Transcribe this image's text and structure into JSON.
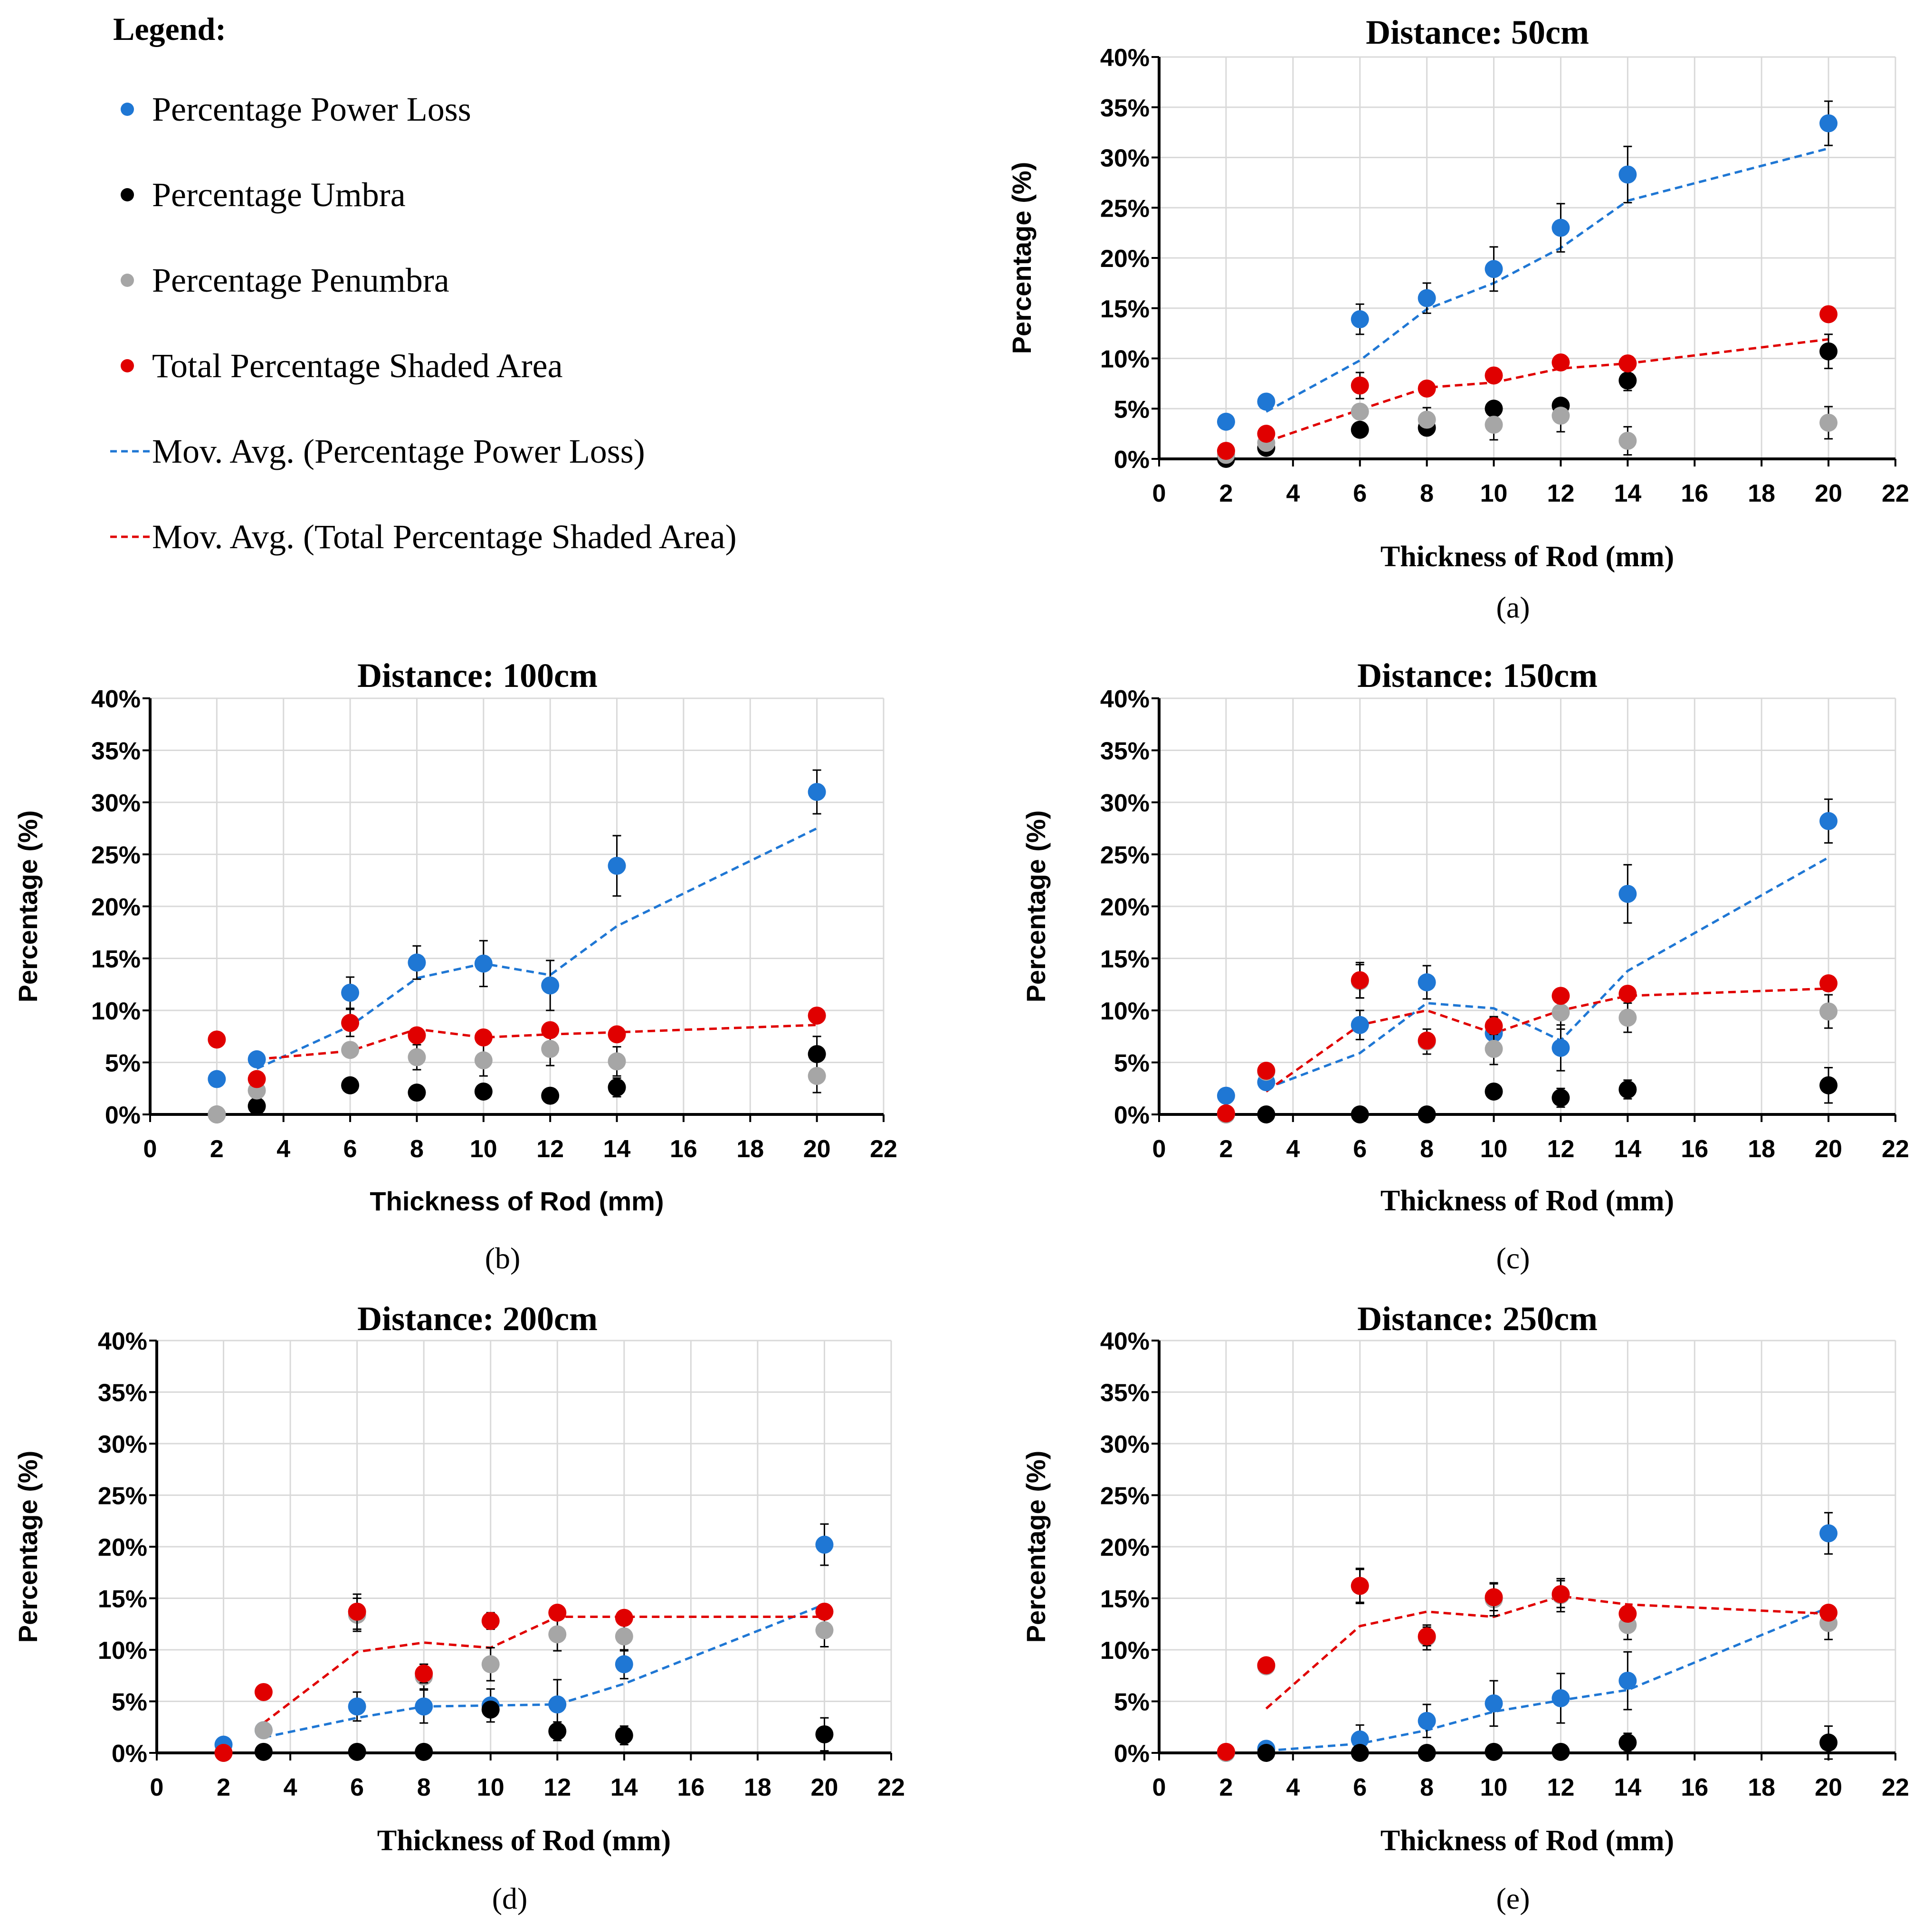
{
  "legend": {
    "title": "Legend:",
    "items": [
      {
        "label": "Percentage Power Loss",
        "kind": "marker",
        "color": "#1f77d4"
      },
      {
        "label": "Percentage Umbra",
        "kind": "marker",
        "color": "#000000"
      },
      {
        "label": "Percentage Penumbra",
        "kind": "marker",
        "color": "#a6a6a6"
      },
      {
        "label": "Total Percentage Shaded Area",
        "kind": "marker",
        "color": "#e00000"
      },
      {
        "label": "Mov. Avg. (Percentage Power Loss)",
        "kind": "dash",
        "color": "#1f77d4"
      },
      {
        "label": "Mov. Avg. (Total Percentage Shaded Area)",
        "kind": "dash",
        "color": "#e00000"
      }
    ]
  },
  "colors": {
    "power": "#1f77d4",
    "umbra": "#000000",
    "penumbra": "#a6a6a6",
    "shaded": "#e00000"
  },
  "chart_data": [
    {
      "id": "a",
      "type": "scatter",
      "title": "Distance: 50cm",
      "caption": "(a)",
      "xlabel": "Thickness of Rod (mm)",
      "ylabel": "Percentage (%)",
      "xlim": [
        0,
        22
      ],
      "ylim": [
        0,
        40
      ],
      "x_ticks": [
        "0",
        "2",
        "4",
        "6",
        "8",
        "10",
        "12",
        "14",
        "16",
        "18",
        "20",
        "22"
      ],
      "y_ticks": [
        "0%",
        "5%",
        "10%",
        "15%",
        "20%",
        "25%",
        "30%",
        "35%",
        "40%"
      ],
      "x": [
        2,
        3.2,
        6,
        8,
        10,
        12,
        14,
        20
      ],
      "series": [
        {
          "name": "Percentage Power Loss",
          "color": "#1f77d4",
          "values": [
            3.7,
            5.7,
            13.9,
            16.0,
            18.9,
            23.0,
            28.3,
            33.4
          ],
          "errors": [
            0,
            0,
            1.5,
            1.5,
            2.2,
            2.4,
            2.8,
            2.2
          ]
        },
        {
          "name": "Percentage Umbra",
          "color": "#000000",
          "values": [
            0.0,
            1.1,
            2.9,
            3.1,
            5.0,
            5.3,
            7.8,
            10.7
          ],
          "errors": [
            0,
            0,
            0,
            0,
            0,
            0,
            1.0,
            1.7
          ]
        },
        {
          "name": "Percentage Penumbra",
          "color": "#a6a6a6",
          "values": [
            0.4,
            1.6,
            4.7,
            3.9,
            3.4,
            4.3,
            1.8,
            3.6
          ],
          "errors": [
            0,
            0,
            0,
            1.2,
            1.5,
            1.6,
            1.4,
            1.6
          ]
        },
        {
          "name": "Total Percentage Shaded Area",
          "color": "#e00000",
          "values": [
            0.8,
            2.5,
            7.3,
            7.0,
            8.3,
            9.6,
            9.5,
            14.4
          ],
          "errors": [
            0,
            0,
            1.3,
            0,
            0.7,
            0.7,
            0,
            0
          ]
        }
      ],
      "moving_averages": [
        {
          "name": "Mov. Avg. (Percentage Power Loss)",
          "color": "#1f77d4",
          "x": [
            3.2,
            6,
            8,
            10,
            12,
            14,
            20
          ],
          "values": [
            4.7,
            9.8,
            14.9,
            17.5,
            21.0,
            25.7,
            30.9
          ]
        },
        {
          "name": "Mov. Avg. (Total Percentage Shaded Area)",
          "color": "#e00000",
          "x": [
            3.2,
            6,
            8,
            10,
            12,
            14,
            20
          ],
          "values": [
            1.7,
            4.9,
            7.1,
            7.6,
            9.0,
            9.5,
            11.9
          ]
        }
      ]
    },
    {
      "id": "b",
      "type": "scatter",
      "title": "Distance: 100cm",
      "caption": "(b)",
      "xlabel": "Thickness of Rod (mm)",
      "ylabel": "Percentage (%)",
      "xlim": [
        0,
        22
      ],
      "ylim": [
        0,
        40
      ],
      "x_ticks": [
        "0",
        "2",
        "4",
        "6",
        "8",
        "10",
        "12",
        "14",
        "16",
        "18",
        "20",
        "22"
      ],
      "y_ticks": [
        "0%",
        "5%",
        "10%",
        "15%",
        "20%",
        "25%",
        "30%",
        "35%",
        "40%"
      ],
      "x": [
        2,
        3.2,
        6,
        8,
        10,
        12,
        14,
        20
      ],
      "series": [
        {
          "name": "Percentage Power Loss",
          "color": "#1f77d4",
          "values": [
            3.4,
            5.3,
            11.7,
            14.6,
            14.5,
            12.4,
            23.9,
            31.0
          ],
          "errors": [
            0,
            0,
            1.5,
            1.6,
            2.2,
            2.4,
            2.9,
            2.1
          ]
        },
        {
          "name": "Percentage Umbra",
          "color": "#000000",
          "values": [
            0.0,
            0.8,
            2.8,
            2.1,
            2.2,
            1.8,
            2.6,
            5.8
          ],
          "errors": [
            0,
            0,
            0,
            0,
            0,
            0,
            0.9,
            1.7
          ]
        },
        {
          "name": "Percentage Penumbra",
          "color": "#a6a6a6",
          "values": [
            0.0,
            2.3,
            6.2,
            5.5,
            5.2,
            6.3,
            5.1,
            3.7
          ],
          "errors": [
            0,
            0,
            0,
            1.2,
            1.5,
            1.6,
            1.4,
            1.6
          ]
        },
        {
          "name": "Total Percentage Shaded Area",
          "color": "#e00000",
          "values": [
            7.2,
            3.4,
            8.8,
            7.6,
            7.4,
            8.1,
            7.7,
            9.5
          ],
          "errors": [
            0,
            0,
            1.3,
            0,
            0.7,
            0.7,
            0,
            0
          ]
        }
      ],
      "moving_averages": [
        {
          "name": "Mov. Avg. (Percentage Power Loss)",
          "color": "#1f77d4",
          "x": [
            3.2,
            6,
            8,
            10,
            12,
            14,
            20
          ],
          "values": [
            4.4,
            8.5,
            13.1,
            14.5,
            13.4,
            18.1,
            27.5
          ]
        },
        {
          "name": "Mov. Avg. (Total Percentage Shaded Area)",
          "color": "#e00000",
          "x": [
            3.2,
            6,
            8,
            10,
            12,
            14,
            20
          ],
          "values": [
            5.3,
            6.1,
            8.2,
            7.4,
            7.7,
            7.9,
            8.6
          ]
        }
      ]
    },
    {
      "id": "c",
      "type": "scatter",
      "title": "Distance: 150cm",
      "caption": "(c)",
      "xlabel": "Thickness of Rod (mm)",
      "ylabel": "Percentage (%)",
      "xlim": [
        0,
        22
      ],
      "ylim": [
        0,
        40
      ],
      "x_ticks": [
        "0",
        "2",
        "4",
        "6",
        "8",
        "10",
        "12",
        "14",
        "16",
        "18",
        "20",
        "22"
      ],
      "y_ticks": [
        "0%",
        "5%",
        "10%",
        "15%",
        "20%",
        "25%",
        "30%",
        "35%",
        "40%"
      ],
      "x": [
        2,
        3.2,
        6,
        8,
        10,
        12,
        14,
        20
      ],
      "series": [
        {
          "name": "Percentage Power Loss",
          "color": "#1f77d4",
          "values": [
            1.8,
            3.1,
            8.6,
            12.7,
            7.8,
            6.4,
            21.2,
            28.2
          ],
          "errors": [
            0,
            0,
            1.4,
            1.6,
            1.6,
            2.2,
            2.8,
            2.1
          ]
        },
        {
          "name": "Percentage Umbra",
          "color": "#000000",
          "values": [
            0.0,
            0.0,
            0.0,
            0.0,
            2.2,
            1.6,
            2.4,
            2.8
          ],
          "errors": [
            0,
            0,
            0,
            0,
            0,
            0.9,
            0.9,
            1.7
          ]
        },
        {
          "name": "Percentage Penumbra",
          "color": "#a6a6a6",
          "values": [
            0.0,
            4.1,
            12.8,
            7.0,
            6.3,
            9.8,
            9.3,
            9.9
          ],
          "errors": [
            0,
            0,
            1.6,
            1.2,
            1.5,
            1.6,
            1.4,
            1.6
          ]
        },
        {
          "name": "Total Percentage Shaded Area",
          "color": "#e00000",
          "values": [
            0.1,
            4.2,
            12.9,
            7.1,
            8.5,
            11.4,
            11.6,
            12.6
          ],
          "errors": [
            0,
            0,
            1.7,
            0,
            0.8,
            0,
            0,
            0
          ]
        }
      ],
      "moving_averages": [
        {
          "name": "Mov. Avg. (Percentage Power Loss)",
          "color": "#1f77d4",
          "x": [
            3.2,
            6,
            8,
            10,
            12,
            14,
            20
          ],
          "values": [
            2.5,
            5.9,
            10.7,
            10.2,
            7.1,
            13.8,
            24.7
          ]
        },
        {
          "name": "Mov. Avg. (Total Percentage Shaded Area)",
          "color": "#e00000",
          "x": [
            3.2,
            6,
            8,
            10,
            12,
            14,
            20
          ],
          "values": [
            2.2,
            8.6,
            10.0,
            7.8,
            10.0,
            11.4,
            12.1
          ]
        }
      ]
    },
    {
      "id": "d",
      "type": "scatter",
      "title": "Distance: 200cm",
      "caption": "(d)",
      "xlabel": "Thickness of Rod (mm)",
      "ylabel": "Percentage (%)",
      "xlim": [
        0,
        22
      ],
      "ylim": [
        0,
        40
      ],
      "x_ticks": [
        "0",
        "2",
        "4",
        "6",
        "8",
        "10",
        "12",
        "14",
        "16",
        "18",
        "20",
        "22"
      ],
      "y_ticks": [
        "0%",
        "5%",
        "10%",
        "15%",
        "20%",
        "25%",
        "30%",
        "35%",
        "40%"
      ],
      "x": [
        2,
        3.2,
        6,
        8,
        10,
        12,
        14,
        20
      ],
      "series": [
        {
          "name": "Percentage Power Loss",
          "color": "#1f77d4",
          "values": [
            0.8,
            2.2,
            4.5,
            4.5,
            4.6,
            4.7,
            8.6,
            20.2
          ],
          "errors": [
            0,
            0,
            1.4,
            1.6,
            1.6,
            2.4,
            1.4,
            2.0
          ]
        },
        {
          "name": "Percentage Umbra",
          "color": "#000000",
          "values": [
            0.0,
            0.1,
            0.1,
            0.1,
            4.2,
            2.1,
            1.7,
            1.8
          ],
          "errors": [
            0,
            0,
            0,
            0,
            0,
            0.9,
            0.9,
            1.6
          ]
        },
        {
          "name": "Percentage Penumbra",
          "color": "#a6a6a6",
          "values": [
            0.0,
            2.2,
            13.4,
            7.4,
            8.6,
            11.5,
            11.3,
            11.9
          ],
          "errors": [
            0,
            0,
            1.6,
            1.2,
            1.6,
            1.6,
            1.4,
            1.6
          ]
        },
        {
          "name": "Total Percentage Shaded Area",
          "color": "#e00000",
          "values": [
            0.0,
            5.9,
            13.7,
            7.7,
            12.8,
            13.6,
            13.1,
            13.7
          ],
          "errors": [
            0,
            0,
            1.7,
            0.9,
            0.8,
            0,
            0,
            0
          ]
        }
      ],
      "moving_averages": [
        {
          "name": "Mov. Avg. (Percentage Power Loss)",
          "color": "#1f77d4",
          "x": [
            3.2,
            6,
            8,
            10,
            12,
            14,
            20
          ],
          "values": [
            1.5,
            3.4,
            4.5,
            4.6,
            4.7,
            6.7,
            14.4
          ]
        },
        {
          "name": "Mov. Avg. (Total Percentage Shaded Area)",
          "color": "#e00000",
          "x": [
            3.2,
            6,
            8,
            10,
            12,
            14,
            20
          ],
          "values": [
            2.9,
            9.8,
            10.7,
            10.2,
            13.2,
            13.2,
            13.2
          ]
        }
      ]
    },
    {
      "id": "e",
      "type": "scatter",
      "title": "Distance: 250cm",
      "caption": "(e)",
      "xlabel": "Thickness of Rod (mm)",
      "ylabel": "Percentage (%)",
      "xlim": [
        0,
        22
      ],
      "ylim": [
        0,
        40
      ],
      "x_ticks": [
        "0",
        "2",
        "4",
        "6",
        "8",
        "10",
        "12",
        "14",
        "16",
        "18",
        "20",
        "22"
      ],
      "y_ticks": [
        "0%",
        "5%",
        "10%",
        "15%",
        "20%",
        "25%",
        "30%",
        "35%",
        "40%"
      ],
      "x": [
        2,
        3.2,
        6,
        8,
        10,
        12,
        14,
        20
      ],
      "series": [
        {
          "name": "Percentage Power Loss",
          "color": "#1f77d4",
          "values": [
            0.0,
            0.4,
            1.3,
            3.1,
            4.8,
            5.3,
            7.0,
            21.3
          ],
          "errors": [
            0,
            0,
            1.4,
            1.6,
            2.2,
            2.4,
            2.8,
            2.0
          ]
        },
        {
          "name": "Percentage Umbra",
          "color": "#000000",
          "values": [
            0.0,
            0.0,
            0.0,
            0.0,
            0.1,
            0.1,
            1.0,
            1.0
          ],
          "errors": [
            0,
            0,
            0,
            0,
            0,
            0,
            0.9,
            1.6
          ]
        },
        {
          "name": "Percentage Penumbra",
          "color": "#a6a6a6",
          "values": [
            0.0,
            8.4,
            16.2,
            11.2,
            14.9,
            15.3,
            12.4,
            12.6
          ],
          "errors": [
            0,
            0,
            1.6,
            1.2,
            1.6,
            1.6,
            1.4,
            1.6
          ]
        },
        {
          "name": "Total Percentage Shaded Area",
          "color": "#e00000",
          "values": [
            0.1,
            8.5,
            16.2,
            11.3,
            15.1,
            15.4,
            13.5,
            13.6
          ],
          "errors": [
            0,
            0,
            1.7,
            0.9,
            1.3,
            1.3,
            0,
            0
          ]
        }
      ],
      "moving_averages": [
        {
          "name": "Mov. Avg. (Percentage Power Loss)",
          "color": "#1f77d4",
          "x": [
            3.2,
            6,
            8,
            10,
            12,
            14,
            20
          ],
          "values": [
            0.2,
            0.9,
            2.2,
            4.0,
            5.1,
            6.1,
            14.1
          ]
        },
        {
          "name": "Mov. Avg. (Total Percentage Shaded Area)",
          "color": "#e00000",
          "x": [
            3.2,
            6,
            8,
            10,
            12,
            14,
            20
          ],
          "values": [
            4.3,
            12.3,
            13.7,
            13.2,
            15.2,
            14.4,
            13.5
          ]
        }
      ]
    }
  ]
}
